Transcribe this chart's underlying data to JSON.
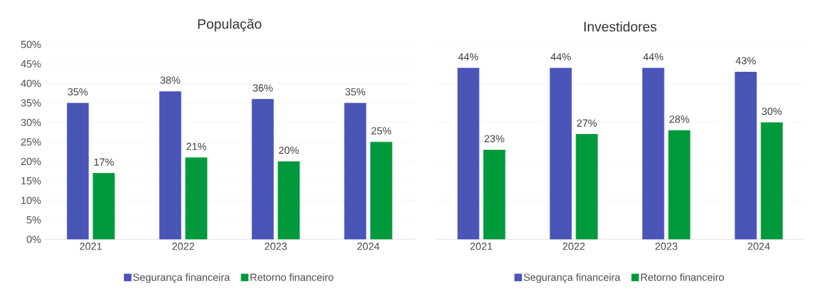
{
  "chart_data": [
    {
      "type": "bar",
      "title": "População",
      "categories": [
        "2021",
        "2022",
        "2023",
        "2024"
      ],
      "series": [
        {
          "name": "Segurança financeira",
          "color": "#4a55b8",
          "values": [
            35,
            38,
            36,
            35
          ],
          "value_labels": [
            "35%",
            "38%",
            "36%",
            "35%"
          ]
        },
        {
          "name": "Retorno financeiro",
          "color": "#009a3c",
          "values": [
            17,
            21,
            20,
            25
          ],
          "value_labels": [
            "17%",
            "21%",
            "20%",
            "25%"
          ]
        }
      ],
      "ylim": [
        0,
        50
      ],
      "yticks": [
        {
          "value": 0,
          "label": "0%"
        },
        {
          "value": 5,
          "label": "5%"
        },
        {
          "value": 10,
          "label": "10%"
        },
        {
          "value": 15,
          "label": "15%"
        },
        {
          "value": 20,
          "label": "20%"
        },
        {
          "value": 25,
          "label": "25%"
        },
        {
          "value": 30,
          "label": "30%"
        },
        {
          "value": 35,
          "label": "35%"
        },
        {
          "value": 40,
          "label": "40%"
        },
        {
          "value": 45,
          "label": "45%"
        },
        {
          "value": 50,
          "label": "50%"
        }
      ],
      "grid": "y",
      "legend": "bottom"
    },
    {
      "type": "bar",
      "title": "Investidores",
      "categories": [
        "2021",
        "2022",
        "2023",
        "2024"
      ],
      "series": [
        {
          "name": "Segurança financeira",
          "color": "#4a55b8",
          "values": [
            44,
            44,
            44,
            43
          ],
          "value_labels": [
            "44%",
            "44%",
            "44%",
            "43%"
          ]
        },
        {
          "name": "Retorno financeiro",
          "color": "#009a3c",
          "values": [
            23,
            27,
            28,
            30
          ],
          "value_labels": [
            "23%",
            "27%",
            "28%",
            "30%"
          ]
        }
      ],
      "ylim": [
        0,
        50
      ],
      "yticks": [
        {
          "value": 0,
          "label": null
        },
        {
          "value": 10,
          "label": null
        },
        {
          "value": 20,
          "label": null
        },
        {
          "value": 30,
          "label": null
        },
        {
          "value": 40,
          "label": null
        },
        {
          "value": 50,
          "label": null
        }
      ],
      "tick_labels": "x",
      "grid": "y",
      "legend": "bottom"
    }
  ]
}
